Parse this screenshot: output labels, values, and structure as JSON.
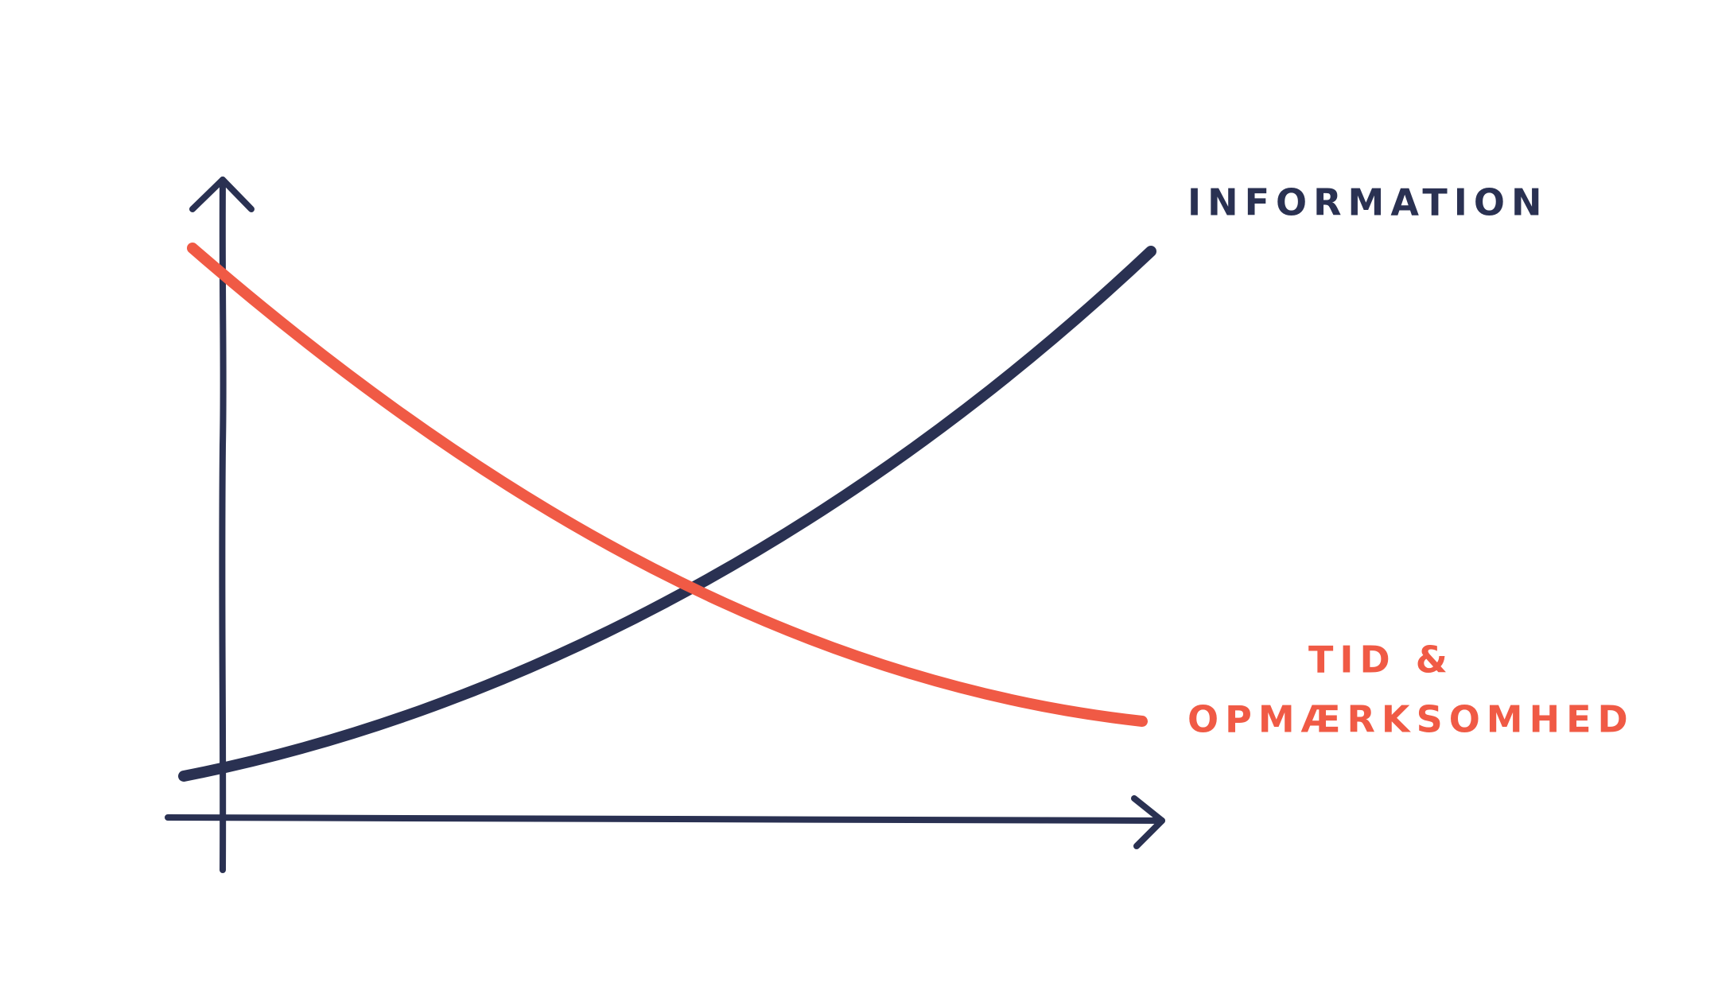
{
  "labels": {
    "information": "INFORMATION",
    "attention": [
      "TID &",
      "OPMÆRKSOMHED"
    ]
  }
}
